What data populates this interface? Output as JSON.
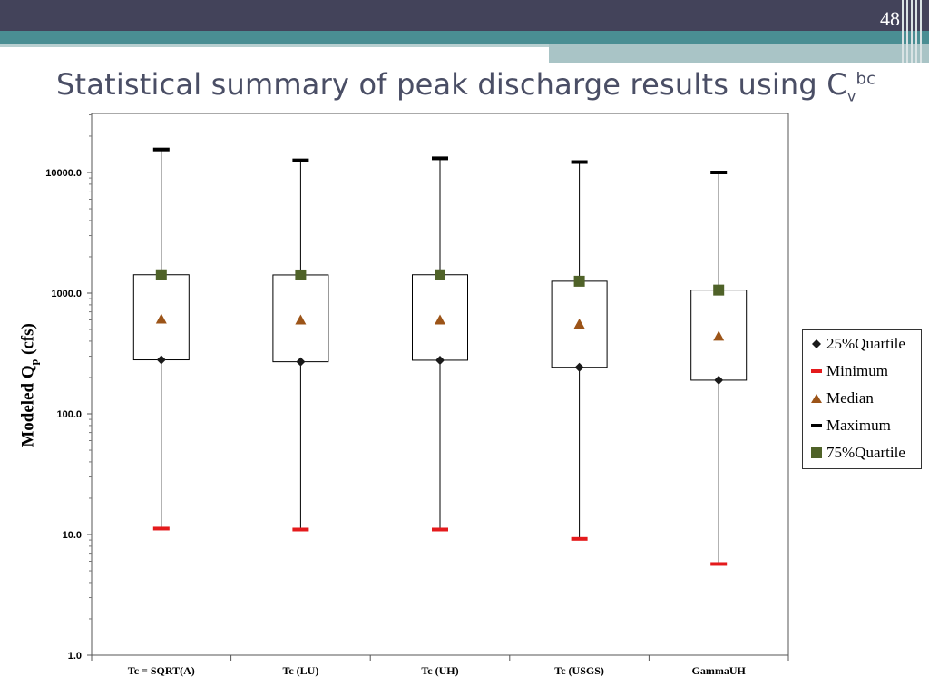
{
  "slide": {
    "number": "48",
    "title_main": "Statistical summary of peak discharge results using C",
    "title_sub": "v",
    "title_sup": "bc",
    "accent_colors": {
      "top_bar": "#43435a",
      "teal_band": "#4a8e93"
    }
  },
  "chart_data": {
    "type": "box",
    "title": "",
    "ylabel_main": "Modeled Q",
    "ylabel_sub": "p",
    "ylabel_unit": " (cfs)",
    "xlabel": "",
    "yscale": "log",
    "ylim": [
      1,
      30000
    ],
    "yticks": [
      "1.0",
      "10.0",
      "100.0",
      "1000.0",
      "10000.0"
    ],
    "categories": [
      "Tc = SQRT(A)",
      "Tc (LU)",
      "Tc (UH)",
      "Tc (USGS)",
      "GammaUH"
    ],
    "series": [
      {
        "name": "25%Quartile",
        "marker": "diamond",
        "color": "#1a1a1a",
        "values": [
          280,
          270,
          278,
          243,
          190
        ]
      },
      {
        "name": "Minimum",
        "marker": "dash",
        "color": "#e41a1c",
        "values": [
          11.2,
          11.0,
          11.0,
          9.2,
          5.7
        ]
      },
      {
        "name": "Median",
        "marker": "triangle",
        "color": "#9c5418",
        "values": [
          610,
          600,
          600,
          555,
          440
        ]
      },
      {
        "name": "Maximum",
        "marker": "dash",
        "color": "#000000",
        "values": [
          15500,
          12600,
          13100,
          12200,
          10000
        ]
      },
      {
        "name": "75%Quartile",
        "marker": "square",
        "color": "#4f6228",
        "values": [
          1420,
          1415,
          1420,
          1255,
          1060
        ]
      }
    ],
    "legend": {
      "position": "right",
      "labels": [
        "25%Quartile",
        "Minimum",
        "Median",
        "Maximum",
        "75%Quartile"
      ]
    }
  }
}
